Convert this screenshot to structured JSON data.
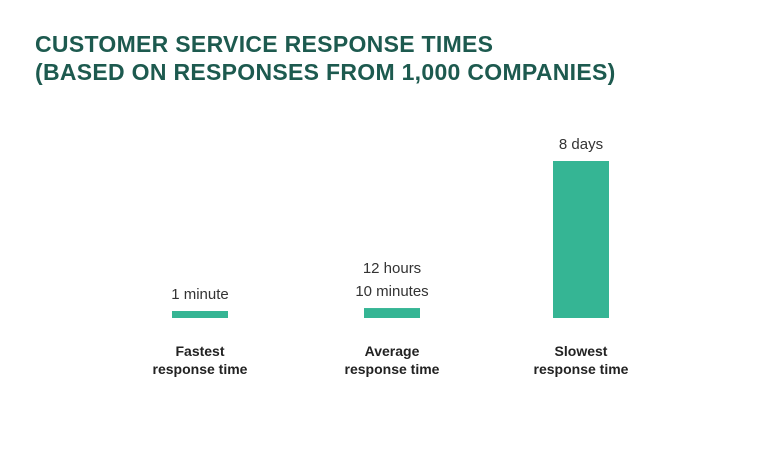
{
  "chart_data": {
    "type": "bar",
    "title": [
      "CUSTOMER SERVICE RESPONSE TIMES",
      "(BASED ON RESPONSES FROM 1,000 COMPANIES)"
    ],
    "categories": [
      [
        "Fastest",
        "response time"
      ],
      [
        "Average",
        "response time"
      ],
      [
        "Slowest",
        "response time"
      ]
    ],
    "values": [
      1,
      730,
      11520
    ],
    "value_labels": [
      [
        "1 minute"
      ],
      [
        "12 hours",
        "10 minutes"
      ],
      [
        "8 days"
      ]
    ],
    "color": "#35b594"
  }
}
